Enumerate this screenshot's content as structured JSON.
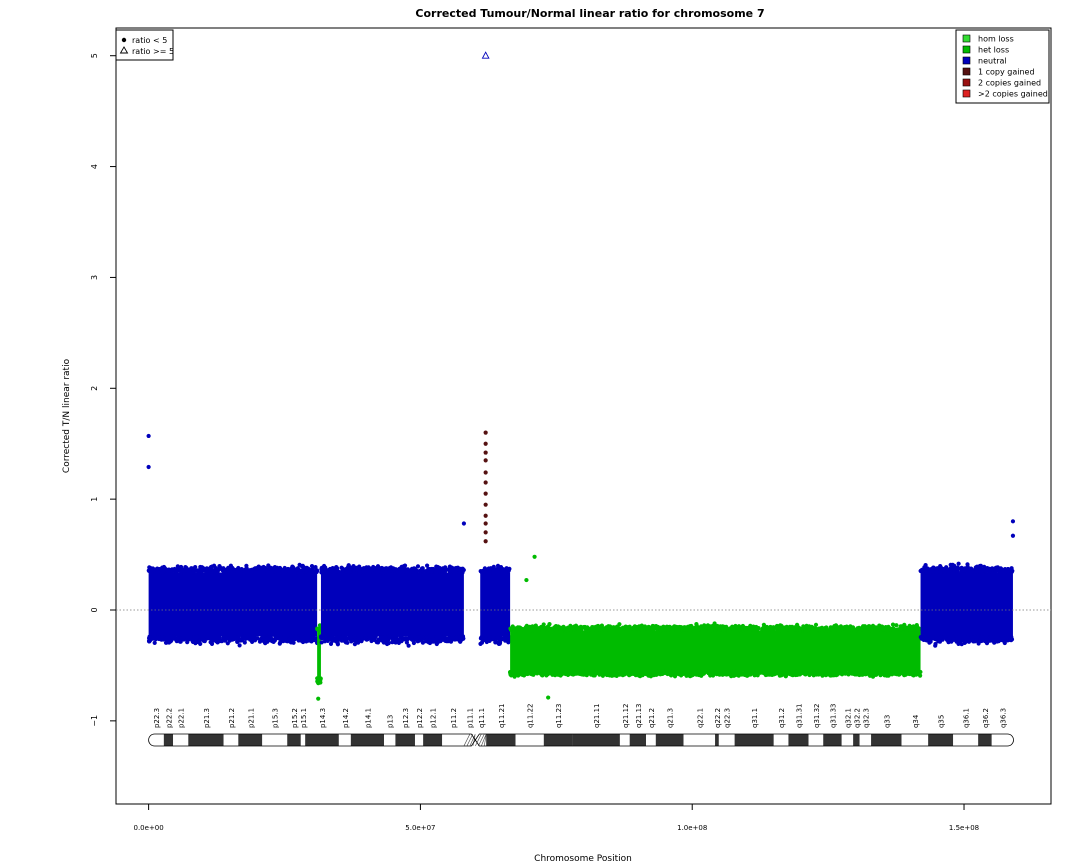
{
  "chart_data": {
    "type": "scatter",
    "title": "Corrected Tumour/Normal linear ratio for chromosome  7",
    "xlabel": "Chromosome Position",
    "ylabel": "Corrected T/N linear ratio",
    "xlim": [
      -6000000,
      166000000
    ],
    "ylim": [
      -1.75,
      5.25
    ],
    "x_ticks": [
      0,
      50000000,
      100000000,
      150000000
    ],
    "x_tick_labels": [
      "0.0e+00",
      "5.0e+07",
      "1.0e+08",
      "1.5e+08"
    ],
    "y_ticks": [
      -1,
      0,
      1,
      2,
      3,
      4,
      5
    ],
    "y_tick_labels": [
      "−1",
      "0",
      "1",
      "2",
      "3",
      "4",
      "5"
    ],
    "reference_line": 0,
    "colors": {
      "hom_loss": "#33dd33",
      "het_loss": "#00bb00",
      "neutral": "#0000bb",
      "one_copy_gained": "#551111",
      "two_copies_gained": "#991111",
      "gt_two_copies_gained": "#dd2222"
    },
    "shape_legend": {
      "position": "top-left",
      "entries": [
        {
          "symbol": "filled-circle",
          "label": "ratio < 5"
        },
        {
          "symbol": "open-triangle",
          "label": "ratio >= 5"
        }
      ]
    },
    "state_legend": {
      "position": "top-right",
      "entries": [
        {
          "label": "hom loss",
          "color": "#33dd33"
        },
        {
          "label": "het loss",
          "color": "#00bb00"
        },
        {
          "label": "neutral",
          "color": "#0000bb"
        },
        {
          "label": "1 copy gained",
          "color": "#551111"
        },
        {
          "label": "2 copies gained",
          "color": "#991111"
        },
        {
          "label": ">2 copies gained",
          "color": "#dd2222"
        }
      ]
    },
    "segments": [
      {
        "state": "neutral",
        "x_start": 0,
        "x_end": 31000000,
        "mean": 0.05,
        "low": -0.35,
        "high": 0.45
      },
      {
        "state": "het_loss",
        "x_start": 31000000,
        "x_end": 31700000,
        "mean": -0.4,
        "low": -0.7,
        "high": -0.1
      },
      {
        "state": "neutral",
        "x_start": 31700000,
        "x_end": 58000000,
        "mean": 0.05,
        "low": -0.35,
        "high": 0.45
      },
      {
        "state": "neutral",
        "x_start": 61000000,
        "x_end": 66500000,
        "mean": 0.05,
        "low": -0.35,
        "high": 0.45
      },
      {
        "state": "het_loss",
        "x_start": 66500000,
        "x_end": 142000000,
        "mean": -0.4,
        "low": -0.62,
        "high": -0.1
      },
      {
        "state": "neutral",
        "x_start": 142000000,
        "x_end": 159000000,
        "mean": 0.05,
        "low": -0.35,
        "high": 0.45
      }
    ],
    "notable_points": [
      {
        "x": 0,
        "y": 1.57,
        "state": "neutral"
      },
      {
        "x": 0,
        "y": 1.29,
        "state": "neutral"
      },
      {
        "x": 62000000,
        "y": 5.0,
        "state": "neutral",
        "shape": "triangle"
      },
      {
        "x": 62000000,
        "y": 1.6,
        "state": "one_copy_gained"
      },
      {
        "x": 62000000,
        "y": 1.5,
        "state": "one_copy_gained"
      },
      {
        "x": 62000000,
        "y": 1.42,
        "state": "one_copy_gained"
      },
      {
        "x": 62000000,
        "y": 1.35,
        "state": "one_copy_gained"
      },
      {
        "x": 62000000,
        "y": 1.24,
        "state": "one_copy_gained"
      },
      {
        "x": 62000000,
        "y": 1.15,
        "state": "one_copy_gained"
      },
      {
        "x": 62000000,
        "y": 1.05,
        "state": "one_copy_gained"
      },
      {
        "x": 62000000,
        "y": 0.95,
        "state": "one_copy_gained"
      },
      {
        "x": 62000000,
        "y": 0.85,
        "state": "one_copy_gained"
      },
      {
        "x": 62000000,
        "y": 0.78,
        "state": "one_copy_gained"
      },
      {
        "x": 62000000,
        "y": 0.7,
        "state": "one_copy_gained"
      },
      {
        "x": 62000000,
        "y": 0.62,
        "state": "one_copy_gained"
      },
      {
        "x": 58000000,
        "y": 0.78,
        "state": "neutral"
      },
      {
        "x": 159000000,
        "y": 0.8,
        "state": "neutral"
      },
      {
        "x": 159000000,
        "y": 0.67,
        "state": "neutral"
      },
      {
        "x": 71000000,
        "y": 0.48,
        "state": "het_loss"
      },
      {
        "x": 69500000,
        "y": 0.27,
        "state": "het_loss"
      },
      {
        "x": 73500000,
        "y": -0.79,
        "state": "het_loss"
      },
      {
        "x": 31200000,
        "y": -0.8,
        "state": "het_loss"
      }
    ],
    "bands": [
      {
        "name": "p22.3",
        "start": 0,
        "end": 2800000,
        "stain": "gneg"
      },
      {
        "name": "p22.2",
        "start": 2800000,
        "end": 4500000,
        "stain": "gpos"
      },
      {
        "name": "p22.1",
        "start": 4500000,
        "end": 7300000,
        "stain": "gneg"
      },
      {
        "name": "p21.3",
        "start": 7300000,
        "end": 13800000,
        "stain": "gpos"
      },
      {
        "name": "p21.2",
        "start": 13800000,
        "end": 16500000,
        "stain": "gneg"
      },
      {
        "name": "p21.1",
        "start": 16500000,
        "end": 20900000,
        "stain": "gpos"
      },
      {
        "name": "p15.3",
        "start": 20900000,
        "end": 25500000,
        "stain": "gneg"
      },
      {
        "name": "p15.2",
        "start": 25500000,
        "end": 28000000,
        "stain": "gpos"
      },
      {
        "name": "p15.1",
        "start": 28000000,
        "end": 28800000,
        "stain": "gneg"
      },
      {
        "name": "p14.3",
        "start": 28800000,
        "end": 35000000,
        "stain": "gpos"
      },
      {
        "name": "p14.2",
        "start": 35000000,
        "end": 37200000,
        "stain": "gneg"
      },
      {
        "name": "p14.1",
        "start": 37200000,
        "end": 43300000,
        "stain": "gpos"
      },
      {
        "name": "p13",
        "start": 43300000,
        "end": 45400000,
        "stain": "gneg"
      },
      {
        "name": "p12.3",
        "start": 45400000,
        "end": 49000000,
        "stain": "gpos"
      },
      {
        "name": "p12.2",
        "start": 49000000,
        "end": 50500000,
        "stain": "gneg"
      },
      {
        "name": "p12.1",
        "start": 50500000,
        "end": 54000000,
        "stain": "gpos"
      },
      {
        "name": "p11.2",
        "start": 54000000,
        "end": 58000000,
        "stain": "gneg"
      },
      {
        "name": "p11.1",
        "start": 58000000,
        "end": 60100000,
        "stain": "acen"
      },
      {
        "name": "q11.1",
        "start": 60100000,
        "end": 62100000,
        "stain": "acen"
      },
      {
        "name": "q11.21",
        "start": 62100000,
        "end": 67500000,
        "stain": "gpos"
      },
      {
        "name": "q11.22",
        "start": 67500000,
        "end": 72700000,
        "stain": "gneg"
      },
      {
        "name": "q11.23",
        "start": 72700000,
        "end": 77900000,
        "stain": "gpos"
      },
      {
        "name": "q21.11",
        "start": 77900000,
        "end": 86700000,
        "stain": "gpos"
      },
      {
        "name": "q21.12",
        "start": 86700000,
        "end": 88500000,
        "stain": "gneg"
      },
      {
        "name": "q21.13",
        "start": 88500000,
        "end": 91500000,
        "stain": "gpos"
      },
      {
        "name": "q21.2",
        "start": 91500000,
        "end": 93300000,
        "stain": "gneg"
      },
      {
        "name": "q21.3",
        "start": 93300000,
        "end": 98400000,
        "stain": "gpos"
      },
      {
        "name": "q22.1",
        "start": 98400000,
        "end": 104200000,
        "stain": "gneg"
      },
      {
        "name": "q22.2",
        "start": 104200000,
        "end": 104900000,
        "stain": "gpos"
      },
      {
        "name": "q22.3",
        "start": 104900000,
        "end": 107800000,
        "stain": "gneg"
      },
      {
        "name": "q31.1",
        "start": 107800000,
        "end": 115000000,
        "stain": "gpos"
      },
      {
        "name": "q31.2",
        "start": 115000000,
        "end": 117700000,
        "stain": "gneg"
      },
      {
        "name": "q31.31",
        "start": 117700000,
        "end": 121400000,
        "stain": "gpos"
      },
      {
        "name": "q31.32",
        "start": 121400000,
        "end": 124100000,
        "stain": "gneg"
      },
      {
        "name": "q31.33",
        "start": 124100000,
        "end": 127500000,
        "stain": "gpos"
      },
      {
        "name": "q32.1",
        "start": 127500000,
        "end": 129600000,
        "stain": "gneg"
      },
      {
        "name": "q32.2",
        "start": 129600000,
        "end": 130800000,
        "stain": "gpos"
      },
      {
        "name": "q32.3",
        "start": 130800000,
        "end": 132900000,
        "stain": "gneg"
      },
      {
        "name": "q33",
        "start": 132900000,
        "end": 138500000,
        "stain": "gpos"
      },
      {
        "name": "q34",
        "start": 138500000,
        "end": 143400000,
        "stain": "gneg"
      },
      {
        "name": "q35",
        "start": 143400000,
        "end": 148000000,
        "stain": "gpos"
      },
      {
        "name": "q36.1",
        "start": 148000000,
        "end": 152600000,
        "stain": "gneg"
      },
      {
        "name": "q36.2",
        "start": 152600000,
        "end": 155100000,
        "stain": "gpos"
      },
      {
        "name": "q36.3",
        "start": 155100000,
        "end": 159100000,
        "stain": "gneg"
      }
    ]
  }
}
